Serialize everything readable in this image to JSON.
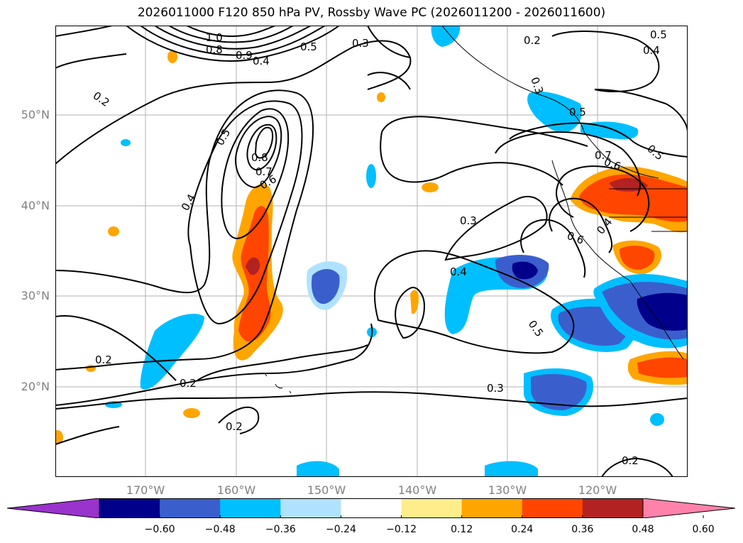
{
  "title": "2026011000 F120 850 hPa PV, Rossby Wave PC (2026011200 - 2026011600)",
  "map": {
    "lat_labels": [
      "50°N",
      "40°N",
      "30°N",
      "20°N"
    ],
    "lon_labels": [
      "170°W",
      "160°W",
      "150°W",
      "140°W",
      "130°W",
      "120°W"
    ],
    "contour_labels": [
      "0.2",
      "0.3",
      "0.4",
      "0.5",
      "0.6",
      "0.7",
      "0.8",
      "0.9",
      "1.0"
    ]
  },
  "colorbar": {
    "ticks": [
      "−0.60",
      "−0.48",
      "−0.36",
      "−0.24",
      "−0.12",
      "0.12",
      "0.24",
      "0.36",
      "0.48",
      "0.60"
    ],
    "colors": [
      "#9a32cd",
      "#00008b",
      "#3a5fcd",
      "#00bfff",
      "#b0e2ff",
      "#ffffff",
      "#ffec8b",
      "#ffa500",
      "#ff4500",
      "#b22222",
      "#ff82ab"
    ]
  },
  "labels_on_map": [
    {
      "text": "0.2"
    },
    {
      "text": "0.2"
    },
    {
      "text": "0.2"
    },
    {
      "text": "0.2"
    },
    {
      "text": "0.2"
    },
    {
      "text": "0.2"
    },
    {
      "text": "0.3"
    },
    {
      "text": "0.3"
    },
    {
      "text": "0.3"
    },
    {
      "text": "0.3"
    },
    {
      "text": "0.4"
    },
    {
      "text": "0.4"
    },
    {
      "text": "0.4"
    },
    {
      "text": "0.4"
    },
    {
      "text": "0.4"
    },
    {
      "text": "0.5"
    },
    {
      "text": "0.5"
    },
    {
      "text": "0.5"
    },
    {
      "text": "0.5"
    },
    {
      "text": "0.5"
    },
    {
      "text": "0.5"
    },
    {
      "text": "0.6"
    },
    {
      "text": "0.6"
    },
    {
      "text": "0.6"
    },
    {
      "text": "0.7"
    },
    {
      "text": "0.7"
    },
    {
      "text": "0.8"
    },
    {
      "text": "0.8"
    },
    {
      "text": "0.9"
    },
    {
      "text": "1.0"
    }
  ]
}
